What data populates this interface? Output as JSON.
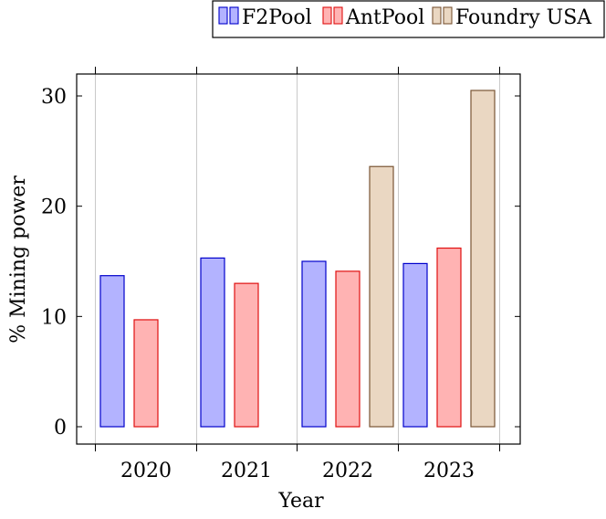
{
  "chart_data": {
    "type": "bar",
    "categories": [
      "2020",
      "2021",
      "2022",
      "2023"
    ],
    "series": [
      {
        "name": "F2Pool",
        "values": [
          13.7,
          15.3,
          15.0,
          14.8
        ],
        "fill": "#b3b3ff",
        "stroke": "#0000cc"
      },
      {
        "name": "AntPool",
        "values": [
          9.7,
          13.0,
          14.1,
          16.2
        ],
        "fill": "#ffb3b3",
        "stroke": "#e01010"
      },
      {
        "name": "Foundry USA",
        "values": [
          0,
          0,
          23.6,
          30.5
        ],
        "fill": "#ead7c2",
        "stroke": "#7a5535"
      }
    ],
    "xlabel": "Year",
    "ylabel": "% Mining power",
    "yticks": [
      "0",
      "10",
      "20",
      "30"
    ],
    "ylim": [
      -1.5,
      32
    ],
    "grid": "vertical",
    "legend_position": "top-right"
  }
}
